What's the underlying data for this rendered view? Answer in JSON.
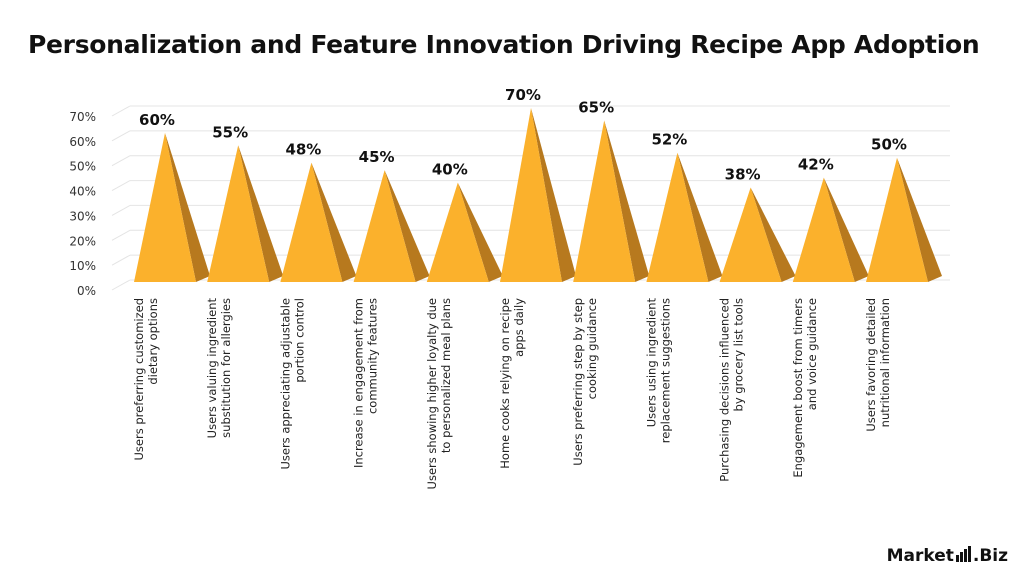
{
  "title": "Personalization and Feature Innovation Driving Recipe App Adoption",
  "brand": {
    "name_part1": "Market",
    "name_part2": ".Biz"
  },
  "colors": {
    "front": "#FBB12C",
    "side": "#B7791E",
    "grid": "#E4E4E4",
    "text": "#111111"
  },
  "chart_data": {
    "type": "bar",
    "shape": "pyramid-3d",
    "title": "Personalization and Feature Innovation Driving Recipe App Adoption",
    "xlabel": "",
    "ylabel": "",
    "ylim": [
      0,
      70
    ],
    "yticks": [
      "0%",
      "10%",
      "20%",
      "30%",
      "40%",
      "50%",
      "60%",
      "70%"
    ],
    "grid": true,
    "legend": "none",
    "categories": [
      [
        "Users preferring customized",
        "dietary options"
      ],
      [
        "Users valuing ingredient",
        "substitution for allergies"
      ],
      [
        "Users appreciating adjustable",
        "portion control"
      ],
      [
        "Increase in engagement from",
        "community features"
      ],
      [
        "Users showing higher loyalty due",
        "to personalized meal plans"
      ],
      [
        "Home cooks relying on recipe",
        "apps daily"
      ],
      [
        "Users preferring step by step",
        "cooking guidance"
      ],
      [
        "Users using ingredient",
        "replacement suggestions"
      ],
      [
        "Purchasing decisions influenced",
        "by grocery list tools"
      ],
      [
        "Engagement boost from timers",
        "and voice guidance"
      ],
      [
        "Users favoring detailed",
        "nutritional information"
      ]
    ],
    "values": [
      60,
      55,
      48,
      45,
      40,
      70,
      65,
      52,
      38,
      42,
      50
    ],
    "data_labels": [
      "60%",
      "55%",
      "48%",
      "45%",
      "40%",
      "70%",
      "65%",
      "52%",
      "38%",
      "42%",
      "50%"
    ]
  }
}
